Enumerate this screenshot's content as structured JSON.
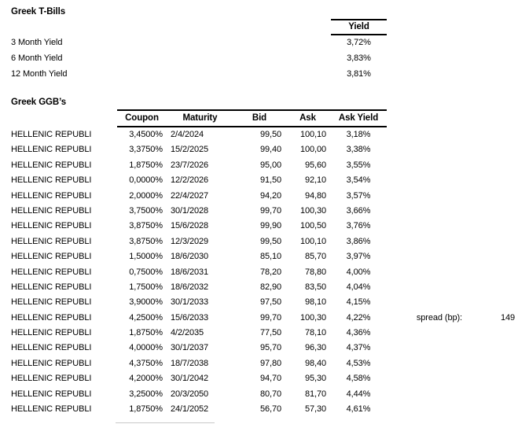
{
  "style": {
    "background": "#ffffff",
    "text_color": "#000000",
    "border_color": "#000000",
    "faint_line_color": "#c9c9c9"
  },
  "tbills": {
    "title": "Greek T-Bills",
    "yield_header": "Yield",
    "rows": [
      {
        "label": "3 Month Yield",
        "value": "3,72%"
      },
      {
        "label": "6 Month Yield",
        "value": "3,83%"
      },
      {
        "label": "12 Month Yield",
        "value": "3,81%"
      }
    ]
  },
  "ggbs": {
    "title": "Greek GGB’s",
    "columns": [
      "Coupon",
      "Maturity",
      "Bid",
      "Ask",
      "Ask Yield"
    ],
    "rows": [
      {
        "name": "HELLENIC REPUBLI",
        "coupon": "3,4500%",
        "maturity": "2/4/2024",
        "bid": "99,50",
        "ask": "100,10",
        "ask_yield": "3,18%"
      },
      {
        "name": "HELLENIC REPUBLI",
        "coupon": "3,3750%",
        "maturity": "15/2/2025",
        "bid": "99,40",
        "ask": "100,00",
        "ask_yield": "3,38%"
      },
      {
        "name": "HELLENIC REPUBLI",
        "coupon": "1,8750%",
        "maturity": "23/7/2026",
        "bid": "95,00",
        "ask": "95,60",
        "ask_yield": "3,55%"
      },
      {
        "name": "HELLENIC REPUBLI",
        "coupon": "0,0000%",
        "maturity": "12/2/2026",
        "bid": "91,50",
        "ask": "92,10",
        "ask_yield": "3,54%"
      },
      {
        "name": "HELLENIC REPUBLI",
        "coupon": "2,0000%",
        "maturity": "22/4/2027",
        "bid": "94,20",
        "ask": "94,80",
        "ask_yield": "3,57%"
      },
      {
        "name": "HELLENIC REPUBLI",
        "coupon": "3,7500%",
        "maturity": "30/1/2028",
        "bid": "99,70",
        "ask": "100,30",
        "ask_yield": "3,66%"
      },
      {
        "name": "HELLENIC REPUBLI",
        "coupon": "3,8750%",
        "maturity": "15/6/2028",
        "bid": "99,90",
        "ask": "100,50",
        "ask_yield": "3,76%"
      },
      {
        "name": "HELLENIC REPUBLI",
        "coupon": "3,8750%",
        "maturity": "12/3/2029",
        "bid": "99,50",
        "ask": "100,10",
        "ask_yield": "3,86%"
      },
      {
        "name": "HELLENIC REPUBLI",
        "coupon": "1,5000%",
        "maturity": "18/6/2030",
        "bid": "85,10",
        "ask": "85,70",
        "ask_yield": "3,97%"
      },
      {
        "name": "HELLENIC REPUBLI",
        "coupon": "0,7500%",
        "maturity": "18/6/2031",
        "bid": "78,20",
        "ask": "78,80",
        "ask_yield": "4,00%"
      },
      {
        "name": "HELLENIC REPUBLI",
        "coupon": "1,7500%",
        "maturity": "18/6/2032",
        "bid": "82,90",
        "ask": "83,50",
        "ask_yield": "4,04%"
      },
      {
        "name": "HELLENIC REPUBLI",
        "coupon": "3,9000%",
        "maturity": "30/1/2033",
        "bid": "97,50",
        "ask": "98,10",
        "ask_yield": "4,15%"
      },
      {
        "name": "HELLENIC REPUBLI",
        "coupon": "4,2500%",
        "maturity": "15/6/2033",
        "bid": "99,70",
        "ask": "100,30",
        "ask_yield": "4,22%"
      },
      {
        "name": "HELLENIC REPUBLI",
        "coupon": "1,8750%",
        "maturity": "4/2/2035",
        "bid": "77,50",
        "ask": "78,10",
        "ask_yield": "4,36%"
      },
      {
        "name": "HELLENIC REPUBLI",
        "coupon": "4,0000%",
        "maturity": "30/1/2037",
        "bid": "95,70",
        "ask": "96,30",
        "ask_yield": "4,37%"
      },
      {
        "name": "HELLENIC REPUBLI",
        "coupon": "4,3750%",
        "maturity": "18/7/2038",
        "bid": "97,80",
        "ask": "98,40",
        "ask_yield": "4,53%"
      },
      {
        "name": "HELLENIC REPUBLI",
        "coupon": "4,2000%",
        "maturity": "30/1/2042",
        "bid": "94,70",
        "ask": "95,30",
        "ask_yield": "4,58%"
      },
      {
        "name": "HELLENIC REPUBLI",
        "coupon": "3,2500%",
        "maturity": "20/3/2050",
        "bid": "80,70",
        "ask": "81,70",
        "ask_yield": "4,44%"
      },
      {
        "name": "HELLENIC REPUBLI",
        "coupon": "1,8750%",
        "maturity": "24/1/2052",
        "bid": "56,70",
        "ask": "57,30",
        "ask_yield": "4,61%"
      }
    ]
  },
  "spread": {
    "label": "spread (bp):",
    "value": "149"
  }
}
